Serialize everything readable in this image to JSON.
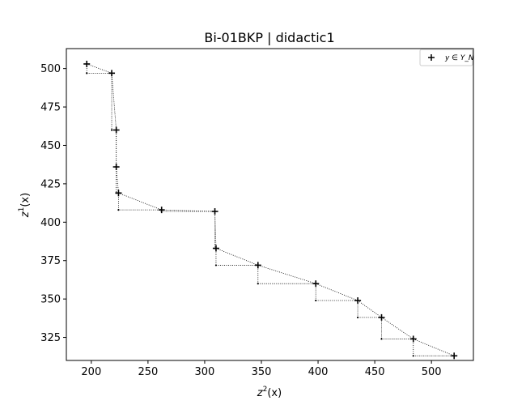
{
  "chart_data": {
    "type": "scatter",
    "title": "Bi-01BKP | didactic1",
    "xlabel": {
      "base": "z",
      "sup": "2",
      "arg": "(x)"
    },
    "ylabel": {
      "base": "z",
      "sup": "1",
      "arg": "(x)"
    },
    "xlim": [
      178,
      537
    ],
    "ylim": [
      310,
      513
    ],
    "xticks": [
      200,
      250,
      300,
      350,
      400,
      450,
      500
    ],
    "yticks": [
      325,
      350,
      375,
      400,
      425,
      450,
      475,
      500
    ],
    "legend": {
      "label": "y ∈ Y_N",
      "placement": "top-right"
    },
    "series": [
      {
        "name": "y ∈ Y_N",
        "marker": "plus",
        "points": [
          {
            "x": 196,
            "y": 503
          },
          {
            "x": 218,
            "y": 497
          },
          {
            "x": 222,
            "y": 460
          },
          {
            "x": 222,
            "y": 436
          },
          {
            "x": 224,
            "y": 419
          },
          {
            "x": 262,
            "y": 408
          },
          {
            "x": 309,
            "y": 407
          },
          {
            "x": 310,
            "y": 383
          },
          {
            "x": 347,
            "y": 372
          },
          {
            "x": 398,
            "y": 360
          },
          {
            "x": 435,
            "y": 349
          },
          {
            "x": 456,
            "y": 338
          },
          {
            "x": 484,
            "y": 324
          },
          {
            "x": 520,
            "y": 313
          }
        ]
      }
    ],
    "local_nadirs": [
      {
        "x": 196,
        "y": 497
      },
      {
        "x": 218,
        "y": 460
      },
      {
        "x": 222,
        "y": 436
      },
      {
        "x": 222,
        "y": 419
      },
      {
        "x": 224,
        "y": 408
      },
      {
        "x": 262,
        "y": 407
      },
      {
        "x": 309,
        "y": 383
      },
      {
        "x": 310,
        "y": 372
      },
      {
        "x": 347,
        "y": 360
      },
      {
        "x": 398,
        "y": 349
      },
      {
        "x": 435,
        "y": 338
      },
      {
        "x": 456,
        "y": 324
      },
      {
        "x": 484,
        "y": 313
      }
    ]
  }
}
